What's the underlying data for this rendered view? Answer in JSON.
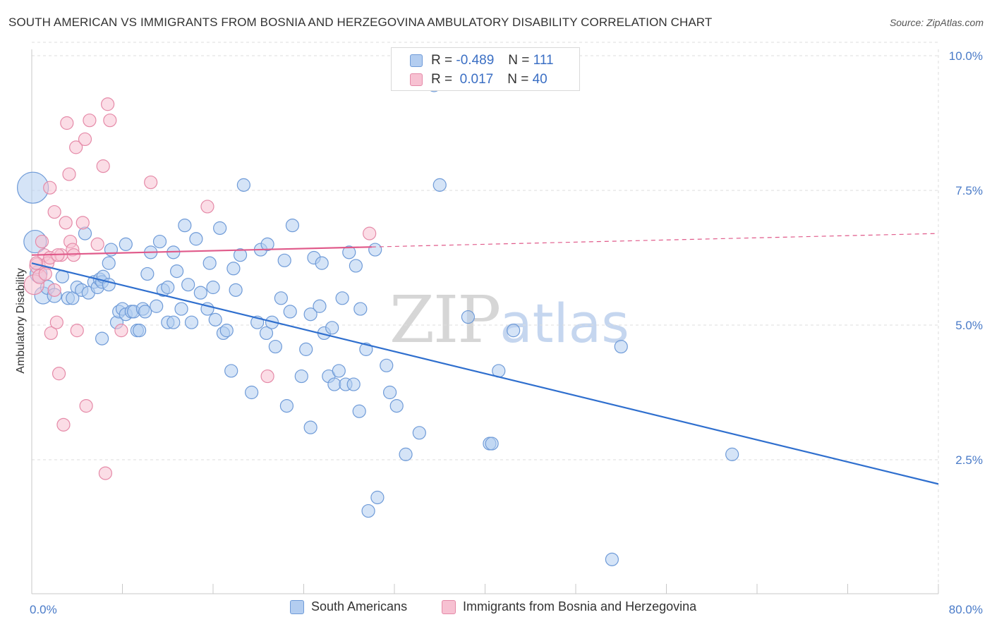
{
  "header": {
    "title": "SOUTH AMERICAN VS IMMIGRANTS FROM BOSNIA AND HERZEGOVINA AMBULATORY DISABILITY CORRELATION CHART",
    "source": "Source: ZipAtlas.com"
  },
  "watermark": {
    "zip": "ZIP",
    "atlas": "atlas"
  },
  "stats": {
    "rows": [
      {
        "r_label": "R =",
        "r_value": "-0.489",
        "n_label": "N =",
        "n_value": "111"
      },
      {
        "r_label": "R =",
        "r_value": "0.017",
        "n_label": "N =",
        "n_value": "40"
      }
    ]
  },
  "legend": {
    "items": [
      {
        "label": "South Americans"
      },
      {
        "label": "Immigrants from Bosnia and Herzegovina"
      }
    ]
  },
  "colors": {
    "blue_fill": "#b3cdf0",
    "blue_stroke": "#6f9bd8",
    "blue_line": "#2f6fce",
    "pink_fill": "#f7c1d2",
    "pink_stroke": "#e58aa8",
    "pink_line": "#e05a8a",
    "tick": "#4a7bc8",
    "grid": "#dddddd"
  },
  "chart_data": {
    "type": "scatter",
    "title": "SOUTH AMERICAN VS IMMIGRANTS FROM BOSNIA AND HERZEGOVINA AMBULATORY DISABILITY CORRELATION CHART",
    "xlabel": "",
    "ylabel": "Ambulatory Disability",
    "xlim": [
      0,
      80
    ],
    "ylim": [
      0,
      10.5
    ],
    "x_tick_labels": [
      "0.0%",
      "80.0%"
    ],
    "y_ticks": [
      2.5,
      5.0,
      7.5,
      10.0
    ],
    "y_tick_labels": [
      "2.5%",
      "5.0%",
      "7.5%",
      "10.0%"
    ],
    "grid": true,
    "legend_position": "bottom",
    "series": [
      {
        "name": "South Americans",
        "trend": {
          "x": [
            0,
            80
          ],
          "y": [
            6.15,
            2.05
          ],
          "dashed_after": null
        },
        "points": [
          [
            0.1,
            7.55,
            22
          ],
          [
            0.3,
            6.55,
            16
          ],
          [
            0.6,
            5.95,
            12
          ],
          [
            1.0,
            5.55,
            12
          ],
          [
            1.4,
            5.7,
            10
          ],
          [
            2.0,
            5.55,
            10
          ],
          [
            2.7,
            5.9,
            9
          ],
          [
            3.2,
            5.5,
            9
          ],
          [
            3.6,
            5.5,
            9
          ],
          [
            4.0,
            5.7,
            9
          ],
          [
            4.4,
            5.65,
            9
          ],
          [
            4.7,
            6.7,
            9
          ],
          [
            5.0,
            5.6,
            9
          ],
          [
            5.5,
            5.8,
            9
          ],
          [
            5.8,
            5.7,
            9
          ],
          [
            6.0,
            5.85,
            9
          ],
          [
            6.2,
            5.8,
            9
          ],
          [
            6.3,
            5.9,
            9
          ],
          [
            6.8,
            6.15,
            9
          ],
          [
            6.2,
            4.75,
            9
          ],
          [
            6.8,
            5.75,
            9
          ],
          [
            7.0,
            6.4,
            9
          ],
          [
            7.5,
            5.05,
            9
          ],
          [
            7.7,
            5.25,
            9
          ],
          [
            8.0,
            5.3,
            9
          ],
          [
            8.3,
            5.2,
            9
          ],
          [
            8.3,
            6.5,
            9
          ],
          [
            8.8,
            5.25,
            9
          ],
          [
            9.0,
            5.25,
            9
          ],
          [
            9.3,
            4.9,
            9
          ],
          [
            9.8,
            5.3,
            9
          ],
          [
            10.0,
            5.25,
            9
          ],
          [
            10.2,
            5.95,
            9
          ],
          [
            10.5,
            6.35,
            9
          ],
          [
            11.0,
            5.35,
            9
          ],
          [
            11.3,
            6.55,
            9
          ],
          [
            11.6,
            5.65,
            9
          ],
          [
            12.0,
            5.05,
            9
          ],
          [
            12.0,
            5.7,
            9
          ],
          [
            12.5,
            5.05,
            9
          ],
          [
            12.5,
            6.35,
            9
          ],
          [
            12.8,
            6.0,
            9
          ],
          [
            13.2,
            5.3,
            9
          ],
          [
            13.5,
            6.85,
            9
          ],
          [
            13.8,
            5.75,
            9
          ],
          [
            14.1,
            5.05,
            9
          ],
          [
            14.5,
            6.6,
            9
          ],
          [
            14.9,
            5.6,
            9
          ],
          [
            15.5,
            5.3,
            9
          ],
          [
            15.7,
            6.15,
            9
          ],
          [
            16.0,
            5.7,
            9
          ],
          [
            16.2,
            5.1,
            9
          ],
          [
            16.6,
            6.8,
            9
          ],
          [
            16.9,
            4.85,
            9
          ],
          [
            17.2,
            4.9,
            9
          ],
          [
            17.6,
            4.15,
            9
          ],
          [
            17.8,
            6.05,
            9
          ],
          [
            18.0,
            5.65,
            9
          ],
          [
            18.4,
            6.3,
            9
          ],
          [
            18.7,
            7.6,
            9
          ],
          [
            19.4,
            3.75,
            9
          ],
          [
            19.9,
            5.05,
            9
          ],
          [
            20.2,
            6.4,
            9
          ],
          [
            20.8,
            6.5,
            9
          ],
          [
            20.7,
            4.85,
            9
          ],
          [
            21.2,
            5.05,
            9
          ],
          [
            21.5,
            4.6,
            9
          ],
          [
            22.0,
            5.5,
            9
          ],
          [
            22.3,
            6.2,
            9
          ],
          [
            22.5,
            3.5,
            9
          ],
          [
            22.8,
            5.25,
            9
          ],
          [
            23.0,
            6.85,
            9
          ],
          [
            23.8,
            4.05,
            9
          ],
          [
            24.2,
            4.55,
            9
          ],
          [
            24.6,
            5.2,
            9
          ],
          [
            24.6,
            3.1,
            9
          ],
          [
            24.9,
            6.25,
            9
          ],
          [
            25.4,
            5.35,
            9
          ],
          [
            25.6,
            6.15,
            9
          ],
          [
            25.8,
            4.85,
            9
          ],
          [
            26.2,
            4.05,
            9
          ],
          [
            26.5,
            4.95,
            9
          ],
          [
            26.7,
            3.9,
            9
          ],
          [
            27.1,
            4.15,
            9
          ],
          [
            27.4,
            5.5,
            9
          ],
          [
            27.7,
            3.9,
            9
          ],
          [
            28.0,
            6.35,
            9
          ],
          [
            28.4,
            3.9,
            9
          ],
          [
            28.6,
            6.1,
            9
          ],
          [
            28.9,
            3.4,
            9
          ],
          [
            29.0,
            5.3,
            9
          ],
          [
            29.5,
            4.55,
            9
          ],
          [
            29.7,
            1.55,
            9
          ],
          [
            30.3,
            6.4,
            9
          ],
          [
            30.5,
            1.8,
            9
          ],
          [
            31.3,
            4.25,
            9
          ],
          [
            31.6,
            3.75,
            9
          ],
          [
            32.2,
            3.5,
            9
          ],
          [
            33.0,
            2.6,
            9
          ],
          [
            34.2,
            3.0,
            9
          ],
          [
            35.5,
            9.45,
            9
          ],
          [
            36.0,
            7.6,
            9
          ],
          [
            38.5,
            5.15,
            9
          ],
          [
            40.4,
            2.8,
            9
          ],
          [
            40.6,
            2.8,
            9
          ],
          [
            41.2,
            4.15,
            9
          ],
          [
            42.5,
            4.9,
            9
          ],
          [
            51.2,
            0.65,
            9
          ],
          [
            52.0,
            4.6,
            9
          ],
          [
            61.8,
            2.6,
            9
          ],
          [
            9.5,
            4.9,
            9
          ]
        ]
      },
      {
        "name": "Immigrants from Bosnia and Herzegovina",
        "trend": {
          "x": [
            0,
            80
          ],
          "y": [
            6.3,
            6.7
          ],
          "dashed_after": 30
        },
        "points": [
          [
            0.2,
            5.75,
            14
          ],
          [
            0.5,
            6.1,
            11
          ],
          [
            0.7,
            5.9,
            10
          ],
          [
            1.1,
            6.3,
            9
          ],
          [
            1.4,
            6.15,
            9
          ],
          [
            1.6,
            6.25,
            9
          ],
          [
            1.6,
            7.55,
            9
          ],
          [
            1.7,
            4.85,
            9
          ],
          [
            2.0,
            7.1,
            9
          ],
          [
            2.0,
            5.65,
            9
          ],
          [
            2.2,
            5.05,
            9
          ],
          [
            2.4,
            4.1,
            9
          ],
          [
            2.6,
            6.3,
            9
          ],
          [
            2.8,
            3.15,
            9
          ],
          [
            3.0,
            6.9,
            9
          ],
          [
            3.1,
            8.75,
            9
          ],
          [
            3.3,
            7.8,
            9
          ],
          [
            3.4,
            6.55,
            9
          ],
          [
            3.6,
            6.4,
            9
          ],
          [
            3.7,
            6.3,
            9
          ],
          [
            3.9,
            8.3,
            9
          ],
          [
            4.0,
            4.9,
            9
          ],
          [
            4.5,
            6.9,
            9
          ],
          [
            4.7,
            8.45,
            9
          ],
          [
            4.8,
            3.5,
            9
          ],
          [
            5.1,
            8.8,
            9
          ],
          [
            5.8,
            6.5,
            9
          ],
          [
            6.3,
            7.95,
            9
          ],
          [
            6.5,
            2.25,
            9
          ],
          [
            6.7,
            9.1,
            9
          ],
          [
            6.9,
            8.8,
            9
          ],
          [
            7.9,
            4.9,
            9
          ],
          [
            10.5,
            7.65,
            9
          ],
          [
            15.5,
            7.2,
            9
          ],
          [
            20.8,
            4.05,
            9
          ],
          [
            29.8,
            6.7,
            9
          ],
          [
            0.9,
            6.55,
            9
          ],
          [
            2.3,
            6.3,
            9
          ],
          [
            1.2,
            5.95,
            9
          ],
          [
            0.4,
            6.15,
            9
          ]
        ]
      }
    ]
  }
}
